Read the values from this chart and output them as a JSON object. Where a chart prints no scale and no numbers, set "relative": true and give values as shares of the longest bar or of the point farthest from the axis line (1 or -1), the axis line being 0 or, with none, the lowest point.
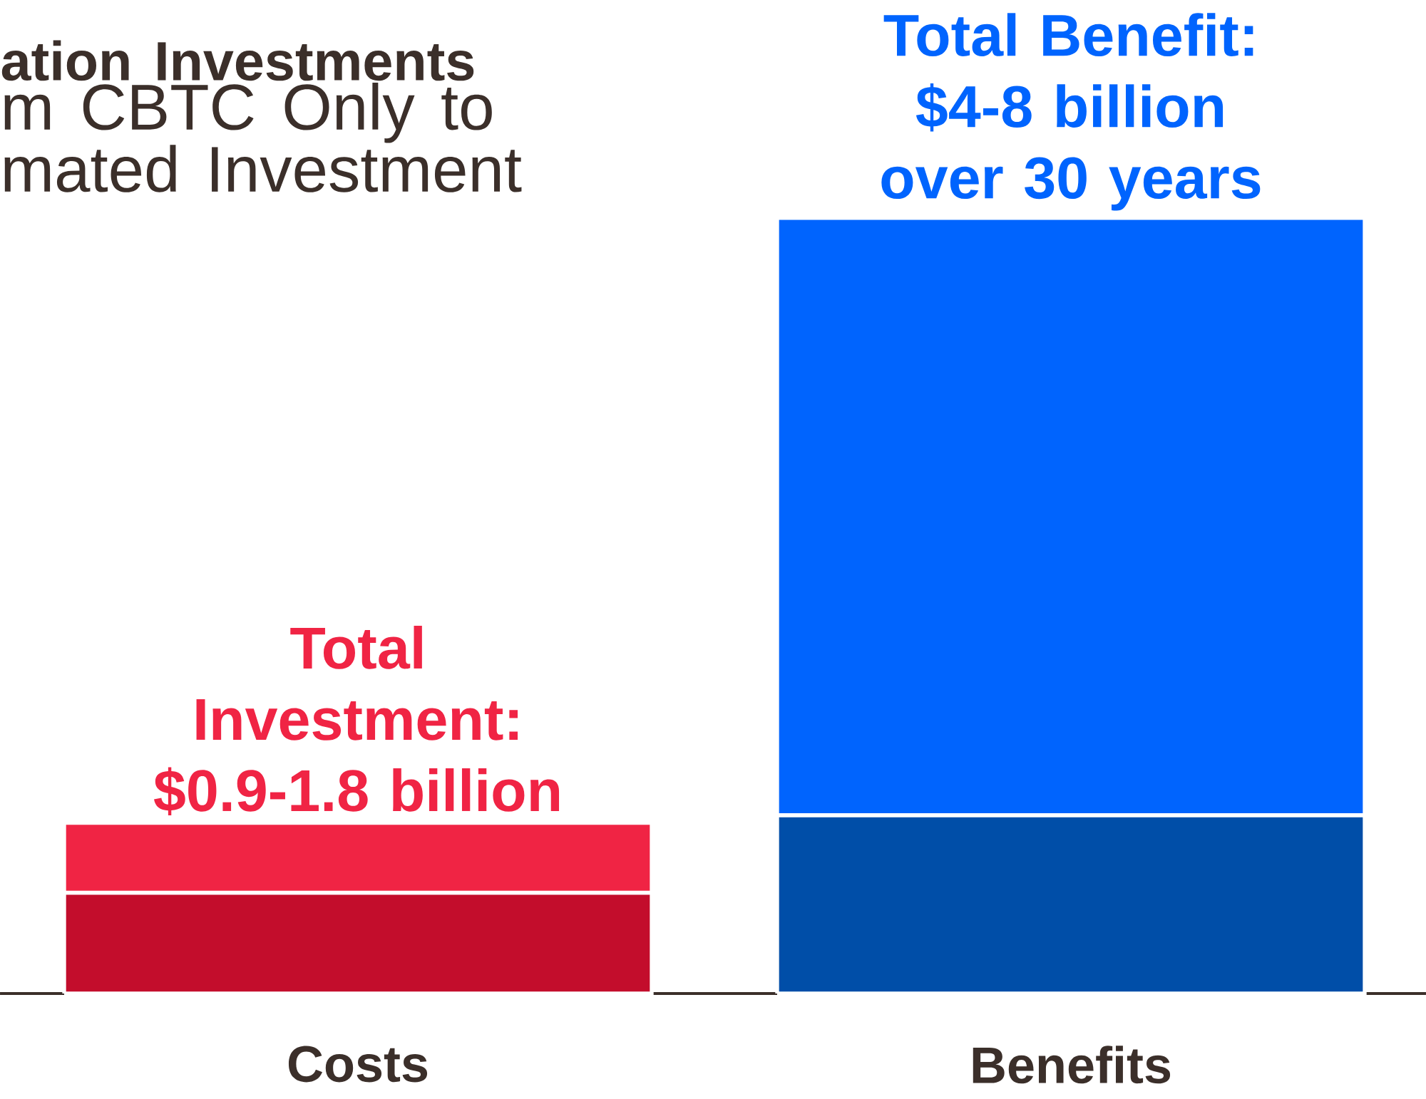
{
  "chart_data": {
    "type": "bar",
    "title": "ation Investments",
    "subtitle": "m CBTC Only to mated Investment",
    "categories": [
      "Costs",
      "Benefits"
    ],
    "stacked": true,
    "relative": true,
    "series": [
      {
        "colors": [
          "#c30d2c",
          "#004ea8"
        ],
        "values": [
          0.13,
          0.23
        ]
      },
      {
        "colors": [
          "#f02444",
          "#0064fe"
        ],
        "values": [
          0.09,
          0.77
        ]
      }
    ],
    "totals": [
      "Total Investment: $0.9-1.8 billion",
      "Total Benefit: $4-8 billion over 30 years"
    ]
  }
}
